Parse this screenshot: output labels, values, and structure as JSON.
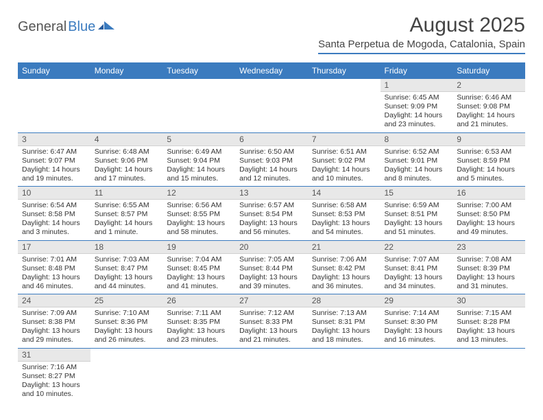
{
  "logo": {
    "text1": "General",
    "text2": "Blue"
  },
  "title": "August 2025",
  "location": "Santa Perpetua de Mogoda, Catalonia, Spain",
  "header_bg": "#3b7bbf",
  "header_text_color": "#ffffff",
  "daynum_bg": "#e8e8e8",
  "border_color": "#3b7bbf",
  "weekdays": [
    "Sunday",
    "Monday",
    "Tuesday",
    "Wednesday",
    "Thursday",
    "Friday",
    "Saturday"
  ],
  "weeks": [
    [
      null,
      null,
      null,
      null,
      null,
      {
        "n": "1",
        "sr": "Sunrise: 6:45 AM",
        "ss": "Sunset: 9:09 PM",
        "d1": "Daylight: 14 hours",
        "d2": "and 23 minutes."
      },
      {
        "n": "2",
        "sr": "Sunrise: 6:46 AM",
        "ss": "Sunset: 9:08 PM",
        "d1": "Daylight: 14 hours",
        "d2": "and 21 minutes."
      }
    ],
    [
      {
        "n": "3",
        "sr": "Sunrise: 6:47 AM",
        "ss": "Sunset: 9:07 PM",
        "d1": "Daylight: 14 hours",
        "d2": "and 19 minutes."
      },
      {
        "n": "4",
        "sr": "Sunrise: 6:48 AM",
        "ss": "Sunset: 9:06 PM",
        "d1": "Daylight: 14 hours",
        "d2": "and 17 minutes."
      },
      {
        "n": "5",
        "sr": "Sunrise: 6:49 AM",
        "ss": "Sunset: 9:04 PM",
        "d1": "Daylight: 14 hours",
        "d2": "and 15 minutes."
      },
      {
        "n": "6",
        "sr": "Sunrise: 6:50 AM",
        "ss": "Sunset: 9:03 PM",
        "d1": "Daylight: 14 hours",
        "d2": "and 12 minutes."
      },
      {
        "n": "7",
        "sr": "Sunrise: 6:51 AM",
        "ss": "Sunset: 9:02 PM",
        "d1": "Daylight: 14 hours",
        "d2": "and 10 minutes."
      },
      {
        "n": "8",
        "sr": "Sunrise: 6:52 AM",
        "ss": "Sunset: 9:01 PM",
        "d1": "Daylight: 14 hours",
        "d2": "and 8 minutes."
      },
      {
        "n": "9",
        "sr": "Sunrise: 6:53 AM",
        "ss": "Sunset: 8:59 PM",
        "d1": "Daylight: 14 hours",
        "d2": "and 5 minutes."
      }
    ],
    [
      {
        "n": "10",
        "sr": "Sunrise: 6:54 AM",
        "ss": "Sunset: 8:58 PM",
        "d1": "Daylight: 14 hours",
        "d2": "and 3 minutes."
      },
      {
        "n": "11",
        "sr": "Sunrise: 6:55 AM",
        "ss": "Sunset: 8:57 PM",
        "d1": "Daylight: 14 hours",
        "d2": "and 1 minute."
      },
      {
        "n": "12",
        "sr": "Sunrise: 6:56 AM",
        "ss": "Sunset: 8:55 PM",
        "d1": "Daylight: 13 hours",
        "d2": "and 58 minutes."
      },
      {
        "n": "13",
        "sr": "Sunrise: 6:57 AM",
        "ss": "Sunset: 8:54 PM",
        "d1": "Daylight: 13 hours",
        "d2": "and 56 minutes."
      },
      {
        "n": "14",
        "sr": "Sunrise: 6:58 AM",
        "ss": "Sunset: 8:53 PM",
        "d1": "Daylight: 13 hours",
        "d2": "and 54 minutes."
      },
      {
        "n": "15",
        "sr": "Sunrise: 6:59 AM",
        "ss": "Sunset: 8:51 PM",
        "d1": "Daylight: 13 hours",
        "d2": "and 51 minutes."
      },
      {
        "n": "16",
        "sr": "Sunrise: 7:00 AM",
        "ss": "Sunset: 8:50 PM",
        "d1": "Daylight: 13 hours",
        "d2": "and 49 minutes."
      }
    ],
    [
      {
        "n": "17",
        "sr": "Sunrise: 7:01 AM",
        "ss": "Sunset: 8:48 PM",
        "d1": "Daylight: 13 hours",
        "d2": "and 46 minutes."
      },
      {
        "n": "18",
        "sr": "Sunrise: 7:03 AM",
        "ss": "Sunset: 8:47 PM",
        "d1": "Daylight: 13 hours",
        "d2": "and 44 minutes."
      },
      {
        "n": "19",
        "sr": "Sunrise: 7:04 AM",
        "ss": "Sunset: 8:45 PM",
        "d1": "Daylight: 13 hours",
        "d2": "and 41 minutes."
      },
      {
        "n": "20",
        "sr": "Sunrise: 7:05 AM",
        "ss": "Sunset: 8:44 PM",
        "d1": "Daylight: 13 hours",
        "d2": "and 39 minutes."
      },
      {
        "n": "21",
        "sr": "Sunrise: 7:06 AM",
        "ss": "Sunset: 8:42 PM",
        "d1": "Daylight: 13 hours",
        "d2": "and 36 minutes."
      },
      {
        "n": "22",
        "sr": "Sunrise: 7:07 AM",
        "ss": "Sunset: 8:41 PM",
        "d1": "Daylight: 13 hours",
        "d2": "and 34 minutes."
      },
      {
        "n": "23",
        "sr": "Sunrise: 7:08 AM",
        "ss": "Sunset: 8:39 PM",
        "d1": "Daylight: 13 hours",
        "d2": "and 31 minutes."
      }
    ],
    [
      {
        "n": "24",
        "sr": "Sunrise: 7:09 AM",
        "ss": "Sunset: 8:38 PM",
        "d1": "Daylight: 13 hours",
        "d2": "and 29 minutes."
      },
      {
        "n": "25",
        "sr": "Sunrise: 7:10 AM",
        "ss": "Sunset: 8:36 PM",
        "d1": "Daylight: 13 hours",
        "d2": "and 26 minutes."
      },
      {
        "n": "26",
        "sr": "Sunrise: 7:11 AM",
        "ss": "Sunset: 8:35 PM",
        "d1": "Daylight: 13 hours",
        "d2": "and 23 minutes."
      },
      {
        "n": "27",
        "sr": "Sunrise: 7:12 AM",
        "ss": "Sunset: 8:33 PM",
        "d1": "Daylight: 13 hours",
        "d2": "and 21 minutes."
      },
      {
        "n": "28",
        "sr": "Sunrise: 7:13 AM",
        "ss": "Sunset: 8:31 PM",
        "d1": "Daylight: 13 hours",
        "d2": "and 18 minutes."
      },
      {
        "n": "29",
        "sr": "Sunrise: 7:14 AM",
        "ss": "Sunset: 8:30 PM",
        "d1": "Daylight: 13 hours",
        "d2": "and 16 minutes."
      },
      {
        "n": "30",
        "sr": "Sunrise: 7:15 AM",
        "ss": "Sunset: 8:28 PM",
        "d1": "Daylight: 13 hours",
        "d2": "and 13 minutes."
      }
    ],
    [
      {
        "n": "31",
        "sr": "Sunrise: 7:16 AM",
        "ss": "Sunset: 8:27 PM",
        "d1": "Daylight: 13 hours",
        "d2": "and 10 minutes."
      },
      null,
      null,
      null,
      null,
      null,
      null
    ]
  ]
}
